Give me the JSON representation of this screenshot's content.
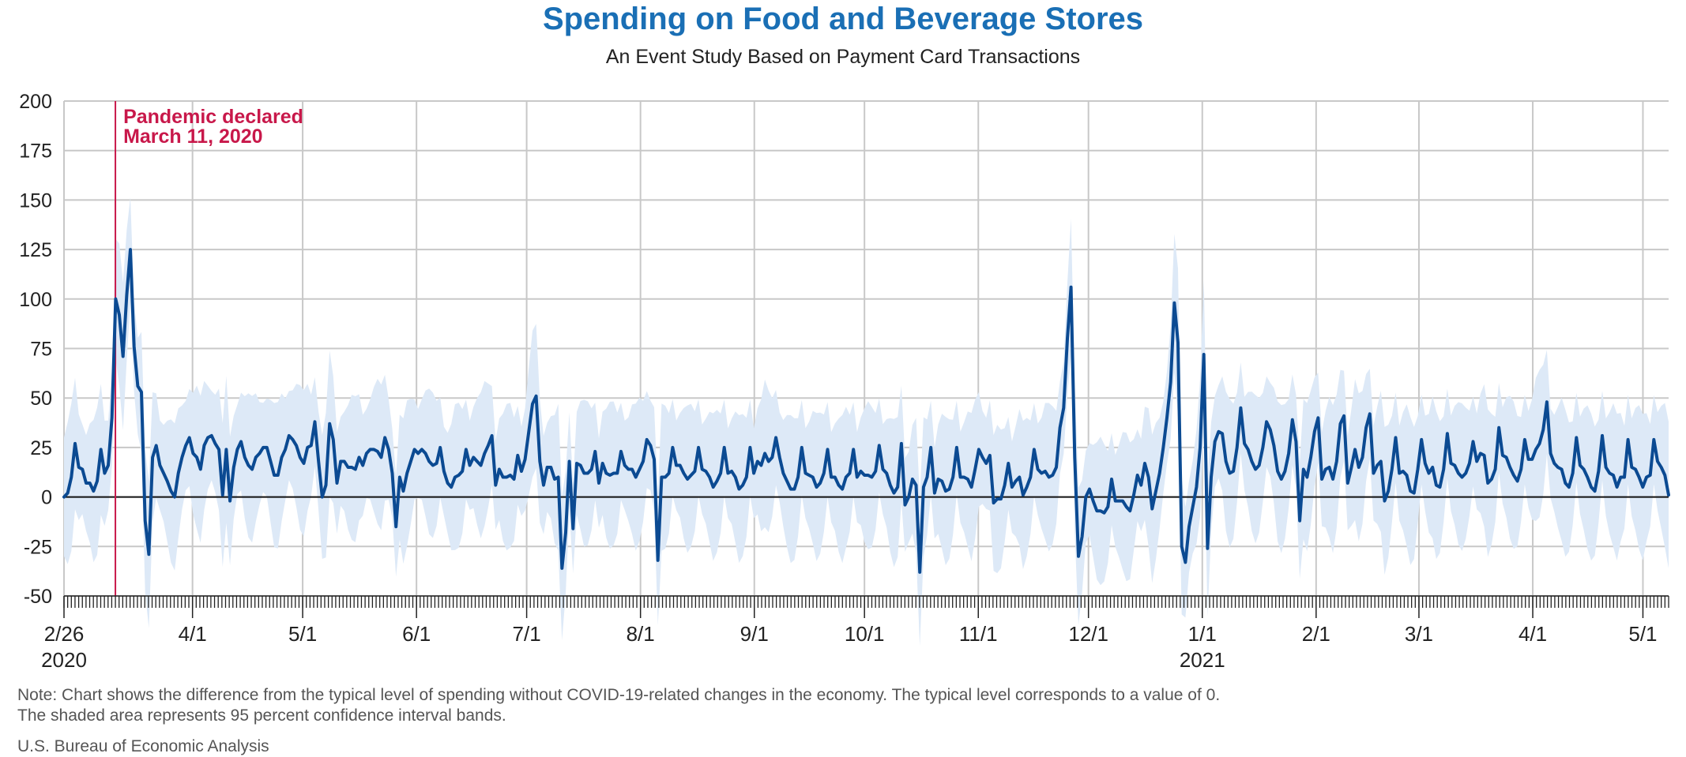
{
  "header": {
    "title": "Spending on Food and Beverage Stores",
    "subtitle": "An Event Study Based on Payment Card Transactions"
  },
  "footer": {
    "note_line1": "Note: Chart shows the difference from the typical level of spending without COVID-19-related changes in the economy. The typical level corresponds to a value of 0.",
    "note_line2": "The shaded area represents 95 percent confidence interval bands.",
    "source": "U.S. Bureau of Economic Analysis"
  },
  "colors": {
    "line": "#0b4a92",
    "band": "#dde9f7",
    "grid": "#c8c8c8",
    "annotation": "#c8184a",
    "title": "#1a6fb5"
  },
  "chart_data": {
    "type": "line",
    "title": "Spending on Food and Beverage Stores",
    "subtitle": "An Event Study Based on Payment Card Transactions",
    "ylim": [
      -50,
      200
    ],
    "yticks": [
      -50,
      -25,
      0,
      25,
      50,
      75,
      100,
      125,
      150,
      175,
      200
    ],
    "x_start_date": "2020-02-26",
    "x_end_date": "2021-05-08",
    "xticks": [
      {
        "label": "2/26",
        "sublabel": "2020",
        "date": "2020-02-26"
      },
      {
        "label": "4/1",
        "date": "2020-04-01"
      },
      {
        "label": "5/1",
        "date": "2020-05-01"
      },
      {
        "label": "6/1",
        "date": "2020-06-01"
      },
      {
        "label": "7/1",
        "date": "2020-07-01"
      },
      {
        "label": "8/1",
        "date": "2020-08-01"
      },
      {
        "label": "9/1",
        "date": "2020-09-01"
      },
      {
        "label": "10/1",
        "date": "2020-10-01"
      },
      {
        "label": "11/1",
        "date": "2020-11-01"
      },
      {
        "label": "12/1",
        "date": "2020-12-01"
      },
      {
        "label": "1/1",
        "sublabel": "2021",
        "date": "2021-01-01"
      },
      {
        "label": "2/1",
        "date": "2021-02-01"
      },
      {
        "label": "3/1",
        "date": "2021-03-01"
      },
      {
        "label": "4/1",
        "date": "2021-04-01"
      },
      {
        "label": "5/1",
        "date": "2021-05-01"
      }
    ],
    "annotation": {
      "date": "2020-03-11",
      "line1": "Pandemic declared",
      "line2": "March 11, 2020"
    },
    "band_halfwidth": 30,
    "series": [
      {
        "values": [
          0,
          2,
          10,
          27,
          15,
          14,
          7,
          7,
          3,
          8,
          24,
          12,
          16,
          40,
          100,
          92,
          71,
          102,
          125,
          76,
          56,
          53,
          -12,
          -29,
          20,
          26,
          16,
          12,
          8,
          3,
          0,
          12,
          20,
          26,
          30,
          22,
          20,
          14,
          26,
          30,
          31,
          27,
          24,
          1,
          24,
          -2,
          15,
          24,
          28,
          20,
          16,
          14,
          20,
          22,
          25,
          25,
          18,
          11,
          11,
          20,
          24,
          31,
          29,
          26,
          20,
          17,
          25,
          26,
          38,
          18,
          0,
          6,
          37,
          29,
          7,
          18,
          18,
          15,
          15,
          14,
          20,
          16,
          22,
          24,
          24,
          23,
          20,
          30,
          24,
          12,
          -15,
          10,
          3,
          12,
          18,
          24,
          22,
          24,
          22,
          18,
          16,
          17,
          25,
          13,
          7,
          5,
          10,
          11,
          13,
          24,
          16,
          20,
          18,
          16,
          22,
          26,
          31,
          6,
          14,
          10,
          10,
          11,
          9,
          21,
          13,
          19,
          33,
          47,
          51,
          18,
          6,
          15,
          15,
          9,
          10,
          -36,
          -18,
          18,
          -16,
          17,
          16,
          12,
          12,
          14,
          23,
          7,
          17,
          12,
          11,
          12,
          12,
          23,
          16,
          14,
          14,
          10,
          14,
          18,
          29,
          26,
          19,
          -32,
          10,
          10,
          12,
          25,
          16,
          16,
          12,
          9,
          11,
          13,
          25,
          14,
          13,
          10,
          5,
          8,
          12,
          25,
          12,
          13,
          10,
          4,
          6,
          10,
          25,
          12,
          18,
          16,
          22,
          18,
          20,
          30,
          20,
          12,
          8,
          4,
          4,
          10,
          25,
          12,
          11,
          10,
          5,
          7,
          12,
          24,
          10,
          10,
          6,
          4,
          10,
          12,
          24,
          10,
          13,
          11,
          11,
          10,
          13,
          26,
          14,
          12,
          6,
          2,
          5,
          27,
          -4,
          0,
          9,
          6,
          -38,
          5,
          10,
          25,
          2,
          9,
          8,
          3,
          4,
          10,
          25,
          10,
          10,
          9,
          5,
          14,
          24,
          20,
          17,
          21,
          -3,
          -1,
          -1,
          6,
          17,
          5,
          8,
          10,
          1,
          5,
          10,
          24,
          14,
          12,
          13,
          10,
          11,
          15,
          35,
          45,
          80,
          106,
          20,
          -30,
          -20,
          0,
          4,
          -2,
          -7,
          -7,
          -8,
          -5,
          9,
          -2,
          -2,
          -2,
          -5,
          -7,
          1,
          11,
          6,
          17,
          10,
          -6,
          3,
          12,
          25,
          40,
          58,
          98,
          78,
          -25,
          -33,
          -15,
          -5,
          5,
          25,
          72,
          -26,
          10,
          28,
          33,
          32,
          18,
          12,
          13,
          25,
          45,
          27,
          24,
          18,
          14,
          16,
          25,
          38,
          34,
          26,
          13,
          9,
          13,
          22,
          39,
          28,
          -12,
          14,
          10,
          20,
          33,
          40,
          9,
          14,
          15,
          9,
          18,
          37,
          41,
          7,
          15,
          24,
          15,
          20,
          35,
          42,
          12,
          16,
          18,
          -2,
          3,
          14,
          30,
          12,
          13,
          11,
          3,
          2,
          14,
          29,
          17,
          12,
          15,
          6,
          5,
          14,
          32,
          17,
          16,
          12,
          10,
          12,
          17,
          28,
          18,
          22,
          21,
          7,
          9,
          14,
          35,
          21,
          20,
          15,
          11,
          8,
          14,
          29,
          19,
          19,
          24,
          27,
          34,
          48,
          22,
          17,
          15,
          14,
          7,
          5,
          12,
          30,
          16,
          14,
          10,
          5,
          3,
          13,
          31,
          15,
          12,
          11,
          5,
          10,
          10,
          29,
          15,
          14,
          10,
          5,
          10,
          11,
          29,
          18,
          15,
          11,
          1
        ]
      }
    ]
  }
}
